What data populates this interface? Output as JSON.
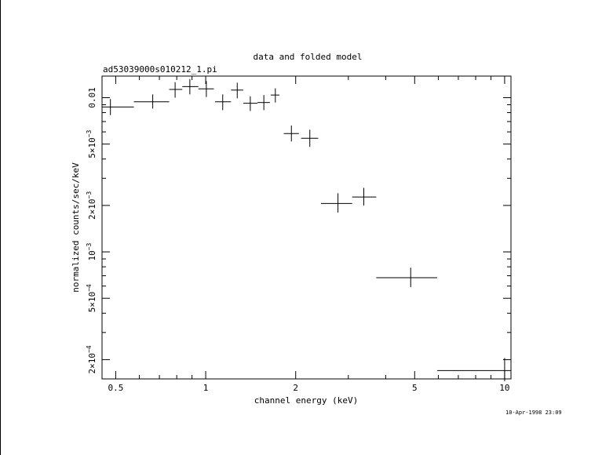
{
  "chart_data": {
    "type": "scatter",
    "title": "data and folded model",
    "subtitle": "ad53039000s010212_1.pi",
    "xlabel": "channel energy (keV)",
    "ylabel": "normalized counts/sec/keV",
    "timestamp": "10-Apr-1998 23:09",
    "x_scale": "log",
    "y_scale": "log",
    "xlim": [
      0.45,
      10.5
    ],
    "ylim": [
      0.00015,
      0.0138
    ],
    "x_ticks": [
      {
        "value": 0.5,
        "label": "0.5"
      },
      {
        "value": 1,
        "label": "1"
      },
      {
        "value": 2,
        "label": "2"
      },
      {
        "value": 5,
        "label": "5"
      },
      {
        "value": 10,
        "label": "10"
      }
    ],
    "y_ticks": [
      {
        "value": 0.01,
        "mant": "0.01",
        "exp": ""
      },
      {
        "value": 0.005,
        "mant": "5×10",
        "exp": "−3"
      },
      {
        "value": 0.002,
        "mant": "2×10",
        "exp": "−3"
      },
      {
        "value": 0.001,
        "mant": "10",
        "exp": "−3"
      },
      {
        "value": 0.0005,
        "mant": "5×10",
        "exp": "−4"
      },
      {
        "value": 0.0002,
        "mant": "2×10",
        "exp": "−4"
      }
    ],
    "grid": false,
    "points": [
      {
        "x": 0.48,
        "xlo": 0.45,
        "xhi": 0.575,
        "y": 0.0087,
        "ylo": 0.0077,
        "yhi": 0.0098
      },
      {
        "x": 0.665,
        "xlo": 0.575,
        "xhi": 0.755,
        "y": 0.0094,
        "ylo": 0.0085,
        "yhi": 0.0105
      },
      {
        "x": 0.79,
        "xlo": 0.755,
        "xhi": 0.835,
        "y": 0.0113,
        "ylo": 0.01,
        "yhi": 0.0126
      },
      {
        "x": 0.885,
        "xlo": 0.835,
        "xhi": 0.945,
        "y": 0.0118,
        "ylo": 0.0105,
        "yhi": 0.0132
      },
      {
        "x": 1.005,
        "xlo": 0.945,
        "xhi": 1.065,
        "y": 0.0114,
        "ylo": 0.0101,
        "yhi": 0.0128
      },
      {
        "x": 1.14,
        "xlo": 1.075,
        "xhi": 1.215,
        "y": 0.0094,
        "ylo": 0.0083,
        "yhi": 0.0105
      },
      {
        "x": 1.275,
        "xlo": 1.215,
        "xhi": 1.335,
        "y": 0.0112,
        "ylo": 0.0099,
        "yhi": 0.0125
      },
      {
        "x": 1.41,
        "xlo": 1.335,
        "xhi": 1.49,
        "y": 0.0092,
        "ylo": 0.0082,
        "yhi": 0.0102
      },
      {
        "x": 1.565,
        "xlo": 1.49,
        "xhi": 1.64,
        "y": 0.0093,
        "ylo": 0.0083,
        "yhi": 0.0104
      },
      {
        "x": 1.71,
        "xlo": 1.65,
        "xhi": 1.765,
        "y": 0.0104,
        "ylo": 0.0093,
        "yhi": 0.0115
      },
      {
        "x": 1.935,
        "xlo": 1.825,
        "xhi": 2.05,
        "y": 0.00585,
        "ylo": 0.0052,
        "yhi": 0.0066
      },
      {
        "x": 2.23,
        "xlo": 2.085,
        "xhi": 2.38,
        "y": 0.00545,
        "ylo": 0.0048,
        "yhi": 0.0062
      },
      {
        "x": 2.77,
        "xlo": 2.43,
        "xhi": 3.09,
        "y": 0.00206,
        "ylo": 0.0018,
        "yhi": 0.0024
      },
      {
        "x": 3.38,
        "xlo": 3.09,
        "xhi": 3.72,
        "y": 0.00227,
        "ylo": 0.002,
        "yhi": 0.0026
      },
      {
        "x": 4.85,
        "xlo": 3.72,
        "xhi": 5.95,
        "y": 0.00068,
        "ylo": 0.00059,
        "yhi": 0.00079
      },
      {
        "x": 10.0,
        "xlo": 5.95,
        "xhi": 10.5,
        "y": 0.00017,
        "ylo": 0.000145,
        "yhi": 0.000205
      }
    ]
  }
}
